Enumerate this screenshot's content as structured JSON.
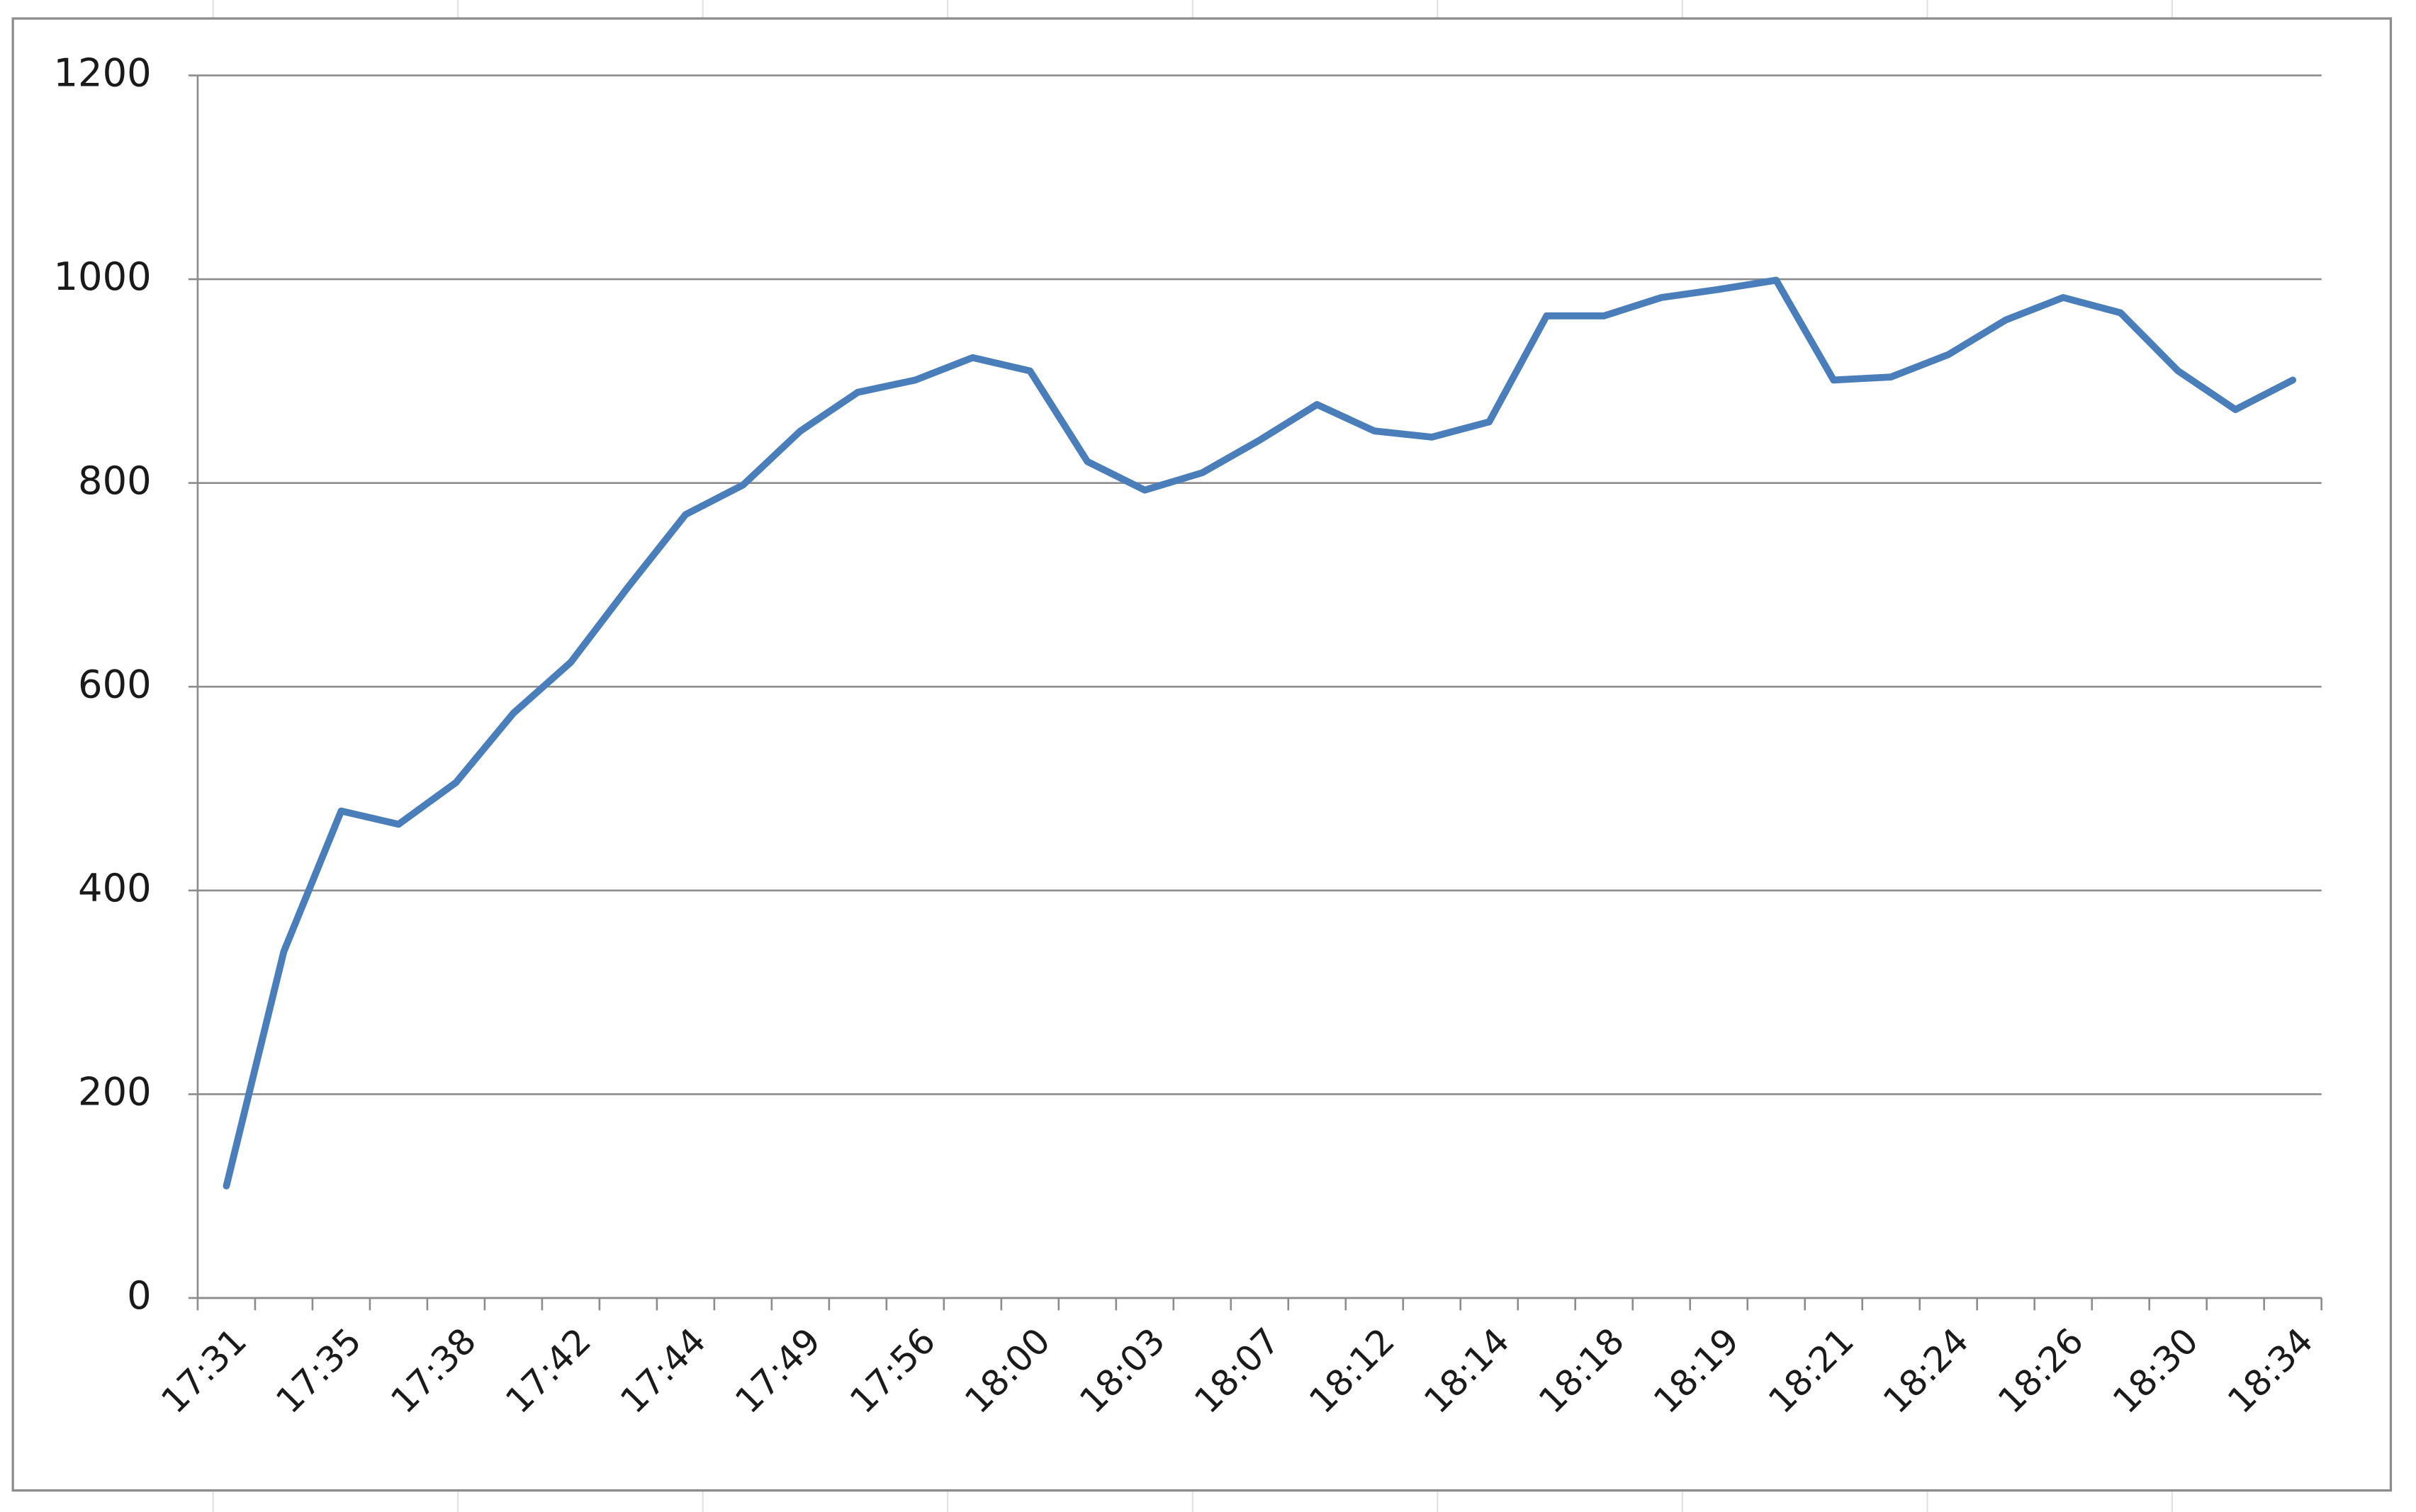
{
  "chart_data": {
    "type": "line",
    "categories": [
      "17:31",
      null,
      "17:35",
      null,
      "17:38",
      null,
      "17:42",
      null,
      "17:44",
      null,
      "17:49",
      null,
      "17:56",
      null,
      "18:00",
      null,
      "18:03",
      null,
      "18:07",
      null,
      "18:12",
      null,
      "18:14",
      null,
      "18:18",
      null,
      "18:19",
      null,
      "18:21",
      null,
      "18:24",
      null,
      "18:26",
      null,
      "18:30",
      null,
      "18:34"
    ],
    "series": [
      {
        "color": "#4a7ebb",
        "values": [
          110,
          340,
          478,
          465,
          506,
          574,
          624,
          698,
          769,
          798,
          851,
          889,
          901,
          923,
          910,
          821,
          793,
          810,
          842,
          877,
          851,
          845,
          860,
          964,
          964,
          982,
          990,
          999,
          901,
          904,
          926,
          960,
          982,
          967,
          910,
          872,
          901
        ]
      }
    ],
    "ylim": [
      0,
      1200
    ],
    "yticks": [
      0,
      200,
      400,
      600,
      800,
      1000,
      1200
    ],
    "grid": true
  }
}
